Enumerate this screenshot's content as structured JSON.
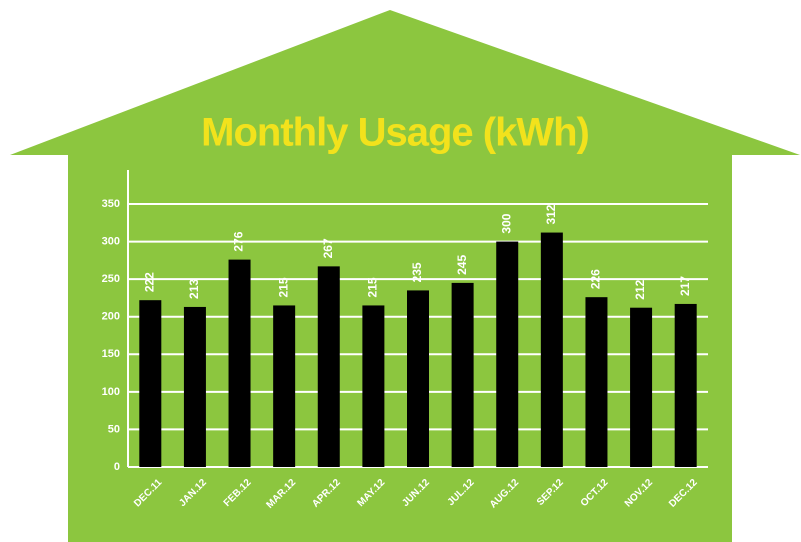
{
  "chart_data": {
    "type": "bar",
    "title": "Monthly Usage (kWh)",
    "categories": [
      "DEC.11",
      "JAN.12",
      "FEB.12",
      "MAR.12",
      "APR.12",
      "MAY.12",
      "JUN.12",
      "JUL.12",
      "AUG.12",
      "SEP.12",
      "OCT.12",
      "NOV.12",
      "DEC.12"
    ],
    "values": [
      222,
      213,
      276,
      215,
      267,
      215,
      235,
      245,
      300,
      312,
      226,
      212,
      217
    ],
    "color": "#000000",
    "ylim": [
      0,
      350
    ],
    "yticks": [
      0,
      50,
      100,
      150,
      200,
      250,
      300,
      350
    ],
    "grid": true
  }
}
